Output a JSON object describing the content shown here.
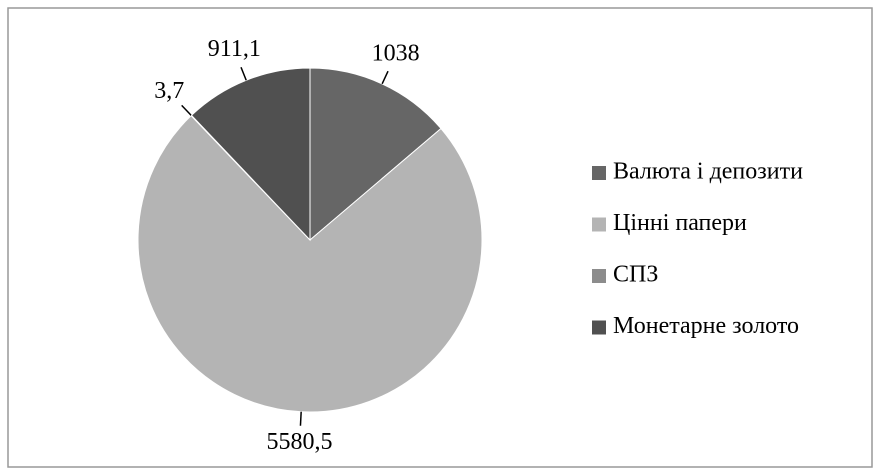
{
  "chart_data": {
    "type": "pie",
    "categories": [
      "Валюта і депозити",
      "Цінні папери",
      "СПЗ",
      "Монетарне золото"
    ],
    "values": [
      1038,
      5580.5,
      3.7,
      911.1
    ],
    "value_labels": [
      "1038",
      "5580,5",
      "3,7",
      "911,1"
    ],
    "colors": [
      "#666666",
      "#b4b4b4",
      "#8c8c8c",
      "#505050"
    ],
    "legend": "right"
  }
}
